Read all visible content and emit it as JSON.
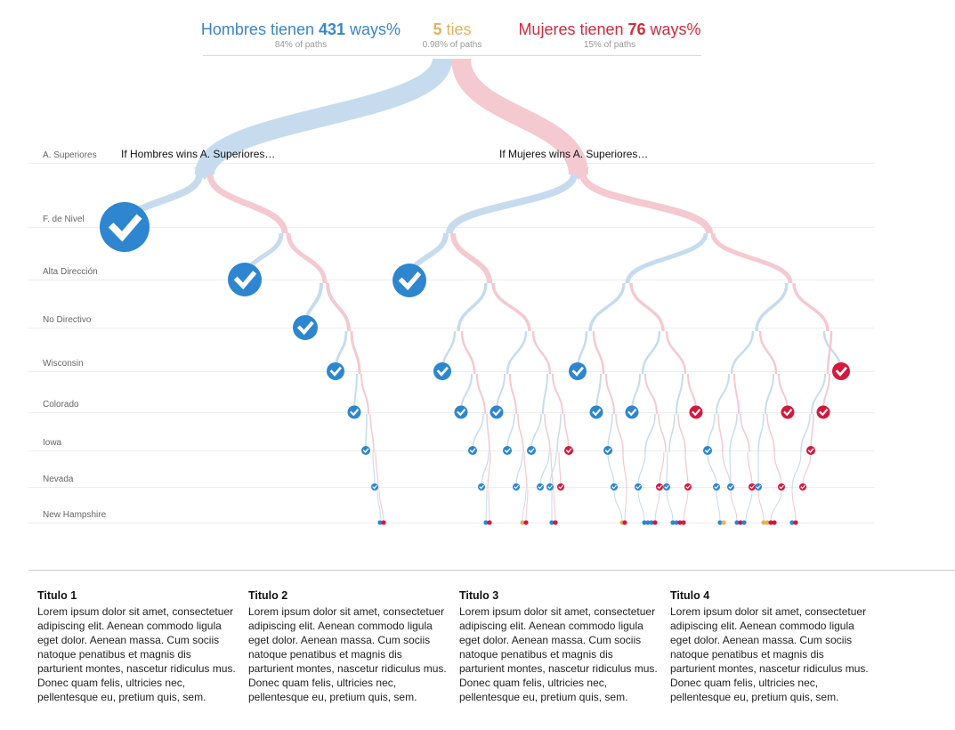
{
  "header": {
    "left": {
      "prefix": "Hombres tienen ",
      "count": "431",
      "suffix": " ways%",
      "sub": "84% of paths"
    },
    "middle": {
      "count": "5",
      "suffix": " ties",
      "sub": "0.98% of paths"
    },
    "right": {
      "prefix": "Mujeres tienen ",
      "count": "76",
      "suffix": " ways%",
      "sub": "15% of paths"
    }
  },
  "rows": [
    "A. Superiores",
    "F. de Nivel",
    "Alta Dirección",
    "No Directivo",
    "Wisconsin",
    "Colorado",
    "Iowa",
    "Nevada",
    "New Hampshire"
  ],
  "branch_labels": {
    "left": "If Hombres wins A. Superiores…",
    "right": "If Mujeres wins A. Superiores…"
  },
  "colors": {
    "hombres": "#2d86cf",
    "mujeres": "#d3193d",
    "tie": "#e2b35e",
    "hombres_path": "#c6dcee",
    "mujeres_path": "#f4c9d0"
  },
  "columns": [
    {
      "title": "Titulo 1",
      "body": "Lorem ipsum dolor sit amet, consectetuer adipiscing elit. Aenean commodo ligula eget dolor. Aenean massa. Cum sociis natoque penatibus et magnis dis parturient montes, nascetur ridiculus mus. Donec quam felis, ultricies nec, pellentesque eu, pretium quis, sem."
    },
    {
      "title": "Titulo 2",
      "body": "Lorem ipsum dolor sit amet, consectetuer adipiscing elit. Aenean commodo ligula eget dolor. Aenean massa. Cum sociis natoque penatibus et magnis dis parturient montes, nascetur ridiculus mus. Donec quam felis, ultricies nec, pellentesque eu, pretium quis, sem."
    },
    {
      "title": "Titulo 3",
      "body": "Lorem ipsum dolor sit amet, consectetuer adipiscing elit. Aenean commodo ligula eget dolor. Aenean massa. Cum sociis natoque penatibus et magnis dis parturient montes, nascetur ridiculus mus. Donec quam felis, ultricies nec, pellentesque eu, pretium quis, sem."
    },
    {
      "title": "Titulo 4",
      "body": "Lorem ipsum dolor sit amet, consectetuer adipiscing elit. Aenean commodo ligula eget dolor. Aenean massa. Cum sociis natoque penatibus et magnis dis parturient montes, nascetur ridiculus mus. Donec quam felis, ultricies nec, pellentesque eu, pretium quis, sem."
    }
  ]
}
